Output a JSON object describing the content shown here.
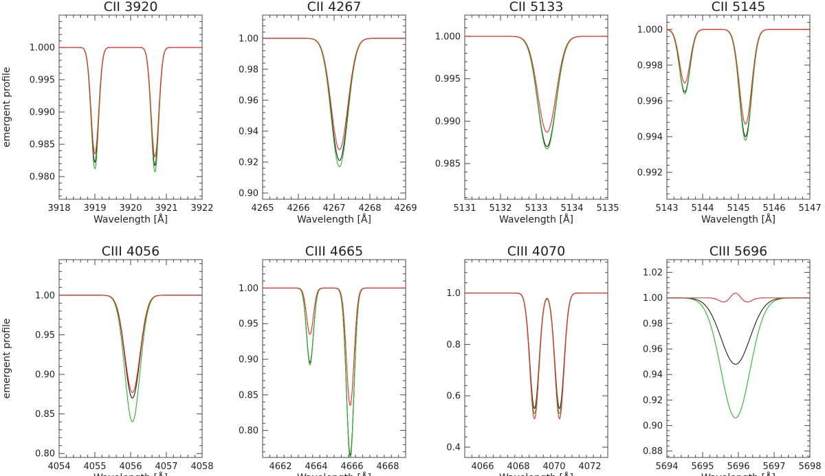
{
  "colors": {
    "black": "#1a1a1a",
    "red": "#ff2020",
    "green": "#22bb22"
  },
  "chart_data": [
    {
      "type": "line",
      "title": "CII 3920",
      "xlabel": "Wavelength [Å]",
      "ylabel": "emergent profile",
      "xlim": [
        3918,
        3922
      ],
      "ylim": [
        0.9765,
        1.005
      ],
      "xticks": [
        "3918",
        "3919",
        "3920",
        "3921",
        "3922"
      ],
      "yticks": [
        "0.980",
        "0.985",
        "0.990",
        "0.995",
        "1.000"
      ],
      "yticks_val": [
        0.98,
        0.985,
        0.99,
        0.995,
        1.0
      ],
      "xtick_val": [
        3918,
        3919,
        3920,
        3921,
        3922
      ],
      "lines": [
        {
          "center": 3919.0,
          "fwhm": 0.25,
          "depth": [
            0.0178,
            0.0165,
            0.0188
          ]
        },
        {
          "center": 3920.68,
          "fwhm": 0.25,
          "depth": [
            0.0183,
            0.017,
            0.0193
          ]
        }
      ]
    },
    {
      "type": "line",
      "title": "CII 4267",
      "xlabel": "Wavelength [Å]",
      "ylabel": "",
      "xlim": [
        4265,
        4269
      ],
      "ylim": [
        0.896,
        1.015
      ],
      "xticks": [
        "4265",
        "4266",
        "4267",
        "4268",
        "4269"
      ],
      "yticks": [
        "0.90",
        "0.92",
        "0.94",
        "0.96",
        "0.98",
        "1.00"
      ],
      "yticks_val": [
        0.9,
        0.92,
        0.94,
        0.96,
        0.98,
        1.0
      ],
      "xtick_val": [
        4265,
        4266,
        4267,
        4268,
        4269
      ],
      "lines": [
        {
          "center": 4267.15,
          "fwhm": 0.55,
          "depth": [
            0.079,
            0.072,
            0.083
          ]
        }
      ]
    },
    {
      "type": "line",
      "title": "CII 5133",
      "xlabel": "Wavelength [Å]",
      "ylabel": "",
      "xlim": [
        5131,
        5135
      ],
      "ylim": [
        0.9808,
        1.0025
      ],
      "xticks": [
        "5131",
        "5132",
        "5133",
        "5134",
        "5135"
      ],
      "yticks": [
        "0.985",
        "0.990",
        "0.995",
        "1.000"
      ],
      "yticks_val": [
        0.985,
        0.99,
        0.995,
        1.0
      ],
      "xtick_val": [
        5131,
        5132,
        5133,
        5134,
        5135
      ],
      "lines": [
        {
          "center": 5133.3,
          "fwhm": 0.6,
          "depth": [
            0.013,
            0.0113,
            0.0133
          ]
        }
      ]
    },
    {
      "type": "line",
      "title": "CII 5145",
      "xlabel": "Wavelength [Å]",
      "ylabel": "",
      "xlim": [
        5143,
        5147
      ],
      "ylim": [
        0.9905,
        1.0008
      ],
      "xticks": [
        "5143",
        "5144",
        "5145",
        "5146",
        "5147"
      ],
      "yticks": [
        "0.992",
        "0.994",
        "0.996",
        "0.998",
        "1.000"
      ],
      "yticks_val": [
        0.992,
        0.994,
        0.996,
        0.998,
        1.0
      ],
      "xtick_val": [
        5143,
        5144,
        5145,
        5146,
        5147
      ],
      "lines": [
        {
          "center": 5143.5,
          "fwhm": 0.35,
          "depth": [
            0.0035,
            0.003,
            0.0036
          ]
        },
        {
          "center": 5145.2,
          "fwhm": 0.4,
          "depth": [
            0.006,
            0.0053,
            0.0062
          ]
        }
      ]
    },
    {
      "type": "line",
      "title": "CIII 4056",
      "xlabel": "Wavelength [Å]",
      "ylabel": "emergent profile",
      "xlim": [
        4054,
        4058
      ],
      "ylim": [
        0.795,
        1.045
      ],
      "xticks": [
        "4054",
        "4055",
        "4056",
        "4057",
        "4058"
      ],
      "yticks": [
        "0.80",
        "0.85",
        "0.90",
        "0.95",
        "1.00"
      ],
      "yticks_val": [
        0.8,
        0.85,
        0.9,
        0.95,
        1.0
      ],
      "xtick_val": [
        4054,
        4055,
        4056,
        4057,
        4058
      ],
      "lines": [
        {
          "center": 4056.05,
          "fwhm": 0.5,
          "depth": [
            0.13,
            0.123,
            0.16
          ]
        }
      ]
    },
    {
      "type": "line",
      "title": "CIII 4665",
      "xlabel": "Wavelength [Å]",
      "ylabel": "",
      "xlim": [
        4661,
        4669
      ],
      "ylim": [
        0.762,
        1.04
      ],
      "xticks": [
        "4662",
        "4664",
        "4666",
        "4668"
      ],
      "yticks": [
        "0.80",
        "0.85",
        "0.90",
        "0.95",
        "1.00"
      ],
      "yticks_val": [
        0.8,
        0.85,
        0.9,
        0.95,
        1.0
      ],
      "xtick_val": [
        4662,
        4664,
        4666,
        4668
      ],
      "lines": [
        {
          "center": 4663.65,
          "fwhm": 0.45,
          "depth": [
            0.105,
            0.065,
            0.108
          ]
        },
        {
          "center": 4665.9,
          "fwhm": 0.5,
          "depth": [
            0.235,
            0.165,
            0.24
          ]
        }
      ]
    },
    {
      "type": "line",
      "title": "CIII 4070",
      "xlabel": "Wavelength [Å]",
      "ylabel": "",
      "xlim": [
        4065,
        4073
      ],
      "ylim": [
        0.36,
        1.13
      ],
      "xticks": [
        "4066",
        "4068",
        "4070",
        "4072"
      ],
      "yticks": [
        "0.4",
        "0.6",
        "0.8",
        "1.0"
      ],
      "yticks_val": [
        0.4,
        0.6,
        0.8,
        1.0
      ],
      "xtick_val": [
        4066,
        4068,
        4070,
        4072
      ],
      "lines": [
        {
          "center": 4068.9,
          "fwhm": 0.6,
          "depth": [
            0.45,
            0.49,
            0.47
          ]
        },
        {
          "center": 4070.3,
          "fwhm": 0.6,
          "depth": [
            0.45,
            0.49,
            0.47
          ]
        }
      ]
    },
    {
      "type": "line",
      "title": "CIII 5696",
      "xlabel": "Wavelength [Å]",
      "ylabel": "",
      "xlim": [
        5694,
        5698
      ],
      "ylim": [
        0.875,
        1.03
      ],
      "xticks": [
        "5694",
        "5695",
        "5696",
        "5697",
        "5698"
      ],
      "yticks": [
        "0.88",
        "0.90",
        "0.92",
        "0.94",
        "0.96",
        "0.98",
        "1.00",
        "1.02"
      ],
      "yticks_val": [
        0.88,
        0.9,
        0.92,
        0.94,
        0.96,
        0.98,
        1.0,
        1.02
      ],
      "xtick_val": [
        5694,
        5695,
        5696,
        5697,
        5698
      ],
      "lines": [
        {
          "center": 5695.92,
          "fwhm": 0.95,
          "depth": [
            0.052,
            0.0,
            0.094
          ]
        }
      ],
      "red_emission": true
    }
  ]
}
